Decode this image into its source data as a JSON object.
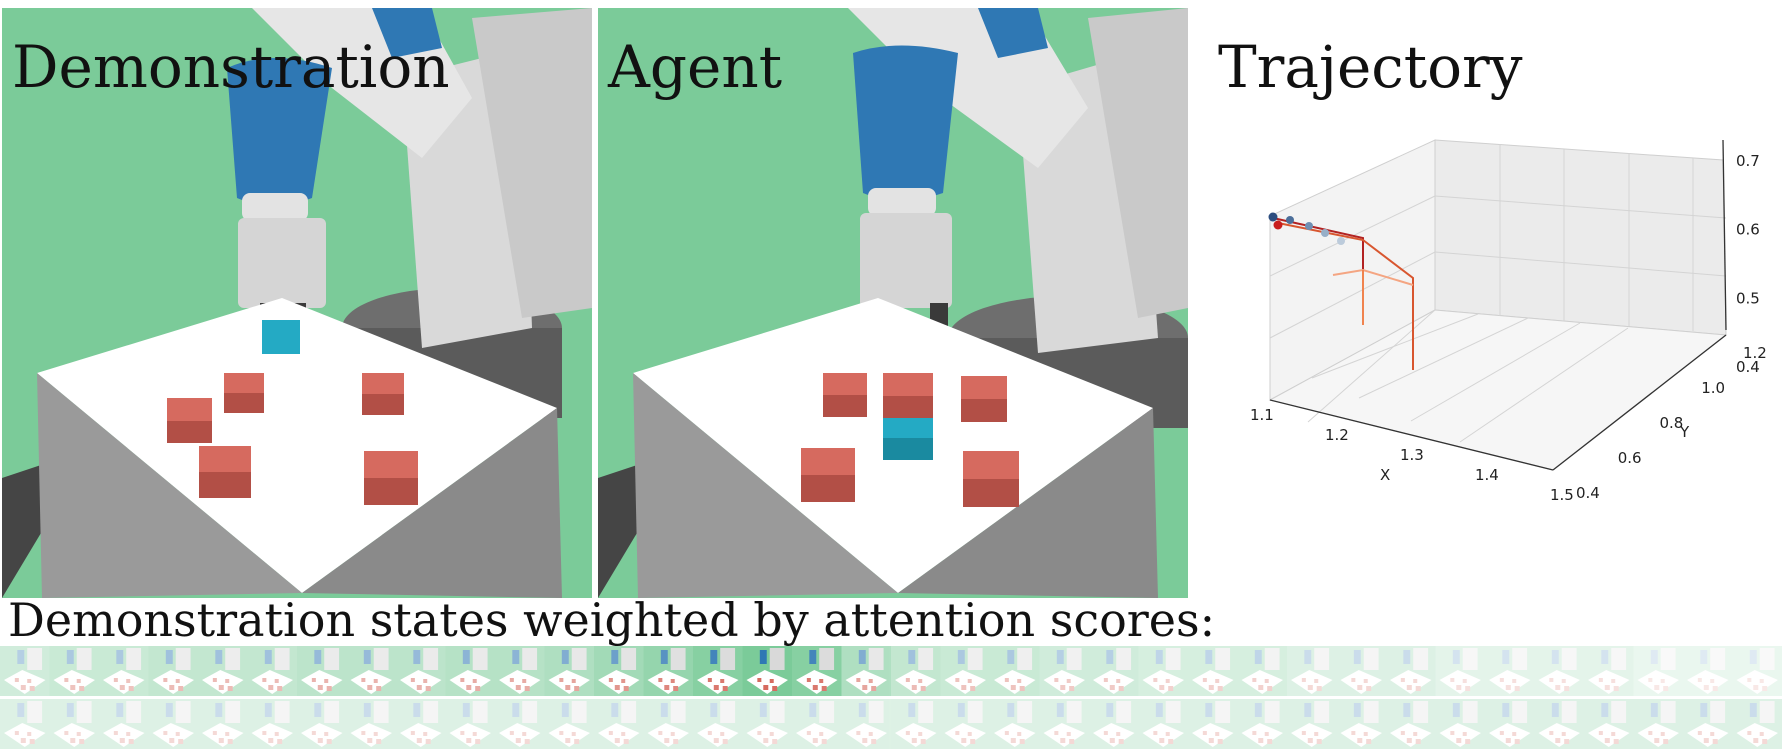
{
  "panels": {
    "demonstration": {
      "title": "Demonstration"
    },
    "agent": {
      "title": "Agent"
    },
    "trajectory": {
      "title": "Trajectory"
    }
  },
  "attention": {
    "caption": "Demonstration states weighted by attention scores:",
    "rows": 2,
    "frames_per_row": 36,
    "weights_row1": [
      0.35,
      0.4,
      0.4,
      0.45,
      0.45,
      0.45,
      0.5,
      0.5,
      0.5,
      0.55,
      0.55,
      0.6,
      0.7,
      0.8,
      0.9,
      1.0,
      0.9,
      0.6,
      0.45,
      0.4,
      0.4,
      0.35,
      0.35,
      0.3,
      0.3,
      0.3,
      0.25,
      0.25,
      0.25,
      0.2,
      0.2,
      0.2,
      0.2,
      0.15,
      0.15,
      0.15
    ],
    "weights_row2": [
      0.25,
      0.25,
      0.25,
      0.25,
      0.25,
      0.25,
      0.25,
      0.25,
      0.25,
      0.25,
      0.25,
      0.25,
      0.25,
      0.25,
      0.25,
      0.25,
      0.25,
      0.25,
      0.25,
      0.25,
      0.25,
      0.25,
      0.25,
      0.25,
      0.25,
      0.25,
      0.25,
      0.25,
      0.25,
      0.25,
      0.25,
      0.25,
      0.25,
      0.25,
      0.25,
      0.25
    ]
  },
  "colors": {
    "background_green": "#7bcb99",
    "robot_blue": "#2f78b4",
    "robot_white": "#e9e9e9",
    "table_top": "#ffffff",
    "table_side": "#9a9a9a",
    "cube_red": "#d66a5f",
    "cube_cyan": "#24aac4",
    "trajectory_dark": "#b22222",
    "trajectory_light": "#f4a582"
  },
  "chart_data": {
    "type": "line3d",
    "title": "Trajectory",
    "xlabel": "X",
    "ylabel": "Y",
    "zlabel": "",
    "xlim": [
      1.1,
      1.5
    ],
    "ylim": [
      0.4,
      1.2
    ],
    "zlim": [
      0.4,
      0.7
    ],
    "x_ticks": [
      "1.1",
      "1.2",
      "1.3",
      "1.4",
      "1.5"
    ],
    "y_ticks": [
      "0.4",
      "0.6",
      "0.8",
      "1.0",
      "1.2"
    ],
    "z_ticks": [
      "0.4",
      "0.5",
      "0.6",
      "0.7"
    ],
    "grid": true
  }
}
